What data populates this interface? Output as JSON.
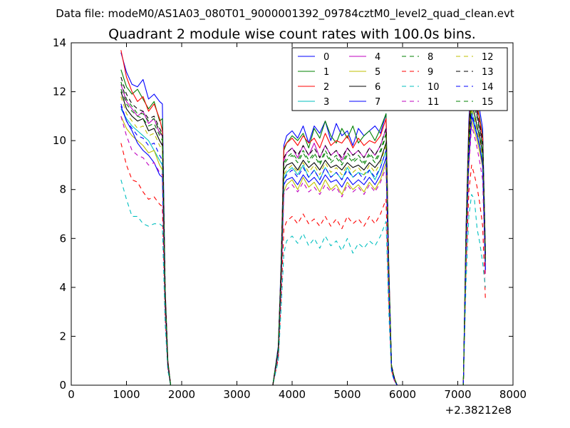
{
  "figure_title": "Data file: modeM0/AS1A03_080T01_9000001392_09784cztM0_level2_quad_clean.evt",
  "chart_data": {
    "type": "line",
    "title": "Quadrant 2 module wise count rates with 100.0s bins.",
    "xlabel": "",
    "ylabel": "",
    "x_offset_label": "+2.38212e8",
    "xlim": [
      0,
      8000
    ],
    "ylim": [
      0,
      14
    ],
    "x_ticks": [
      0,
      1000,
      2000,
      3000,
      4000,
      5000,
      6000,
      7000,
      8000
    ],
    "y_ticks": [
      0,
      2,
      4,
      6,
      8,
      10,
      12,
      14
    ],
    "grid": false,
    "legend": {
      "placement": "top-right",
      "columns": 4
    },
    "x": [
      900,
      1000,
      1100,
      1200,
      1300,
      1400,
      1500,
      1600,
      1650,
      1700,
      1750,
      1800,
      1850,
      3650,
      3750,
      3800,
      3850,
      3900,
      4000,
      4100,
      4200,
      4300,
      4400,
      4500,
      4600,
      4700,
      4800,
      4900,
      5000,
      5100,
      5200,
      5300,
      5400,
      5500,
      5600,
      5700,
      5750,
      5800,
      5850,
      5900,
      7050,
      7100,
      7150,
      7200,
      7250,
      7300,
      7350,
      7400,
      7450,
      7500
    ],
    "series": [
      {
        "name": "0",
        "color": "#0000ff",
        "dash": "solid",
        "values": [
          13.6,
          12.8,
          12.3,
          12.2,
          12.5,
          11.7,
          11.9,
          11.6,
          11.5,
          4.0,
          1.0,
          0,
          0,
          0,
          1.6,
          5.0,
          9.8,
          10.2,
          10.4,
          10.1,
          10.6,
          9.9,
          10.6,
          10.3,
          10.8,
          10.0,
          10.7,
          10.2,
          10.4,
          9.8,
          10.5,
          10.2,
          10.4,
          10.6,
          10.3,
          11.1,
          5.0,
          0.8,
          0.3,
          0,
          0,
          0,
          6.5,
          10.8,
          13.0,
          12.5,
          11.8,
          11.2,
          10.5,
          5.5
        ]
      },
      {
        "name": "1",
        "color": "#008000",
        "dash": "solid",
        "values": [
          12.9,
          12.2,
          11.9,
          12.1,
          11.7,
          11.3,
          11.6,
          10.8,
          10.9,
          3.8,
          0.9,
          0,
          0,
          0,
          1.5,
          4.7,
          9.6,
          9.9,
          10.2,
          10.0,
          10.3,
          9.7,
          10.5,
          10.1,
          10.8,
          10.2,
          9.9,
          10.5,
          10.1,
          10.6,
          9.9,
          10.2,
          10.4,
          10.0,
          10.5,
          11.1,
          4.9,
          0.8,
          0.3,
          0,
          0,
          0,
          6.3,
          10.5,
          12.7,
          12.2,
          11.5,
          10.9,
          10.2,
          5.4
        ]
      },
      {
        "name": "2",
        "color": "#ff0000",
        "dash": "solid",
        "values": [
          13.7,
          12.6,
          12.0,
          11.6,
          11.8,
          11.2,
          11.5,
          10.9,
          10.4,
          3.9,
          1.0,
          0,
          0,
          0,
          1.5,
          4.8,
          9.7,
          9.9,
          10.1,
          9.8,
          10.2,
          9.9,
          10.1,
          9.7,
          10.3,
          9.8,
          10.0,
          9.9,
          10.2,
          9.7,
          10.1,
          9.8,
          10.0,
          9.9,
          10.2,
          10.9,
          4.8,
          0.8,
          0.3,
          0,
          0,
          0,
          6.2,
          10.4,
          12.3,
          11.9,
          11.4,
          10.8,
          10.1,
          5.2
        ]
      },
      {
        "name": "3",
        "color": "#00bfbf",
        "dash": "solid",
        "values": [
          11.3,
          10.9,
          10.6,
          10.4,
          10.2,
          10.0,
          9.6,
          9.2,
          9.0,
          3.3,
          0.8,
          0,
          0,
          0,
          1.3,
          4.2,
          8.4,
          8.7,
          8.9,
          8.6,
          9.0,
          8.5,
          8.8,
          8.4,
          8.9,
          8.5,
          8.7,
          8.4,
          8.9,
          8.5,
          8.7,
          8.6,
          8.8,
          8.4,
          8.9,
          9.6,
          4.3,
          0.7,
          0.2,
          0,
          0,
          0,
          5.6,
          9.4,
          11.2,
          10.8,
          10.3,
          9.8,
          9.2,
          4.8
        ]
      },
      {
        "name": "4",
        "color": "#bf00bf",
        "dash": "solid",
        "values": [
          12.3,
          11.6,
          11.3,
          11.0,
          11.2,
          10.7,
          10.9,
          10.3,
          10.2,
          3.7,
          0.9,
          0,
          0,
          0,
          1.5,
          4.6,
          9.2,
          9.5,
          9.7,
          9.3,
          9.8,
          9.4,
          9.9,
          9.3,
          9.8,
          9.4,
          9.6,
          9.2,
          9.7,
          9.4,
          9.6,
          9.3,
          9.7,
          9.4,
          9.8,
          10.5,
          4.7,
          0.8,
          0.3,
          0,
          0,
          0,
          6.0,
          10.0,
          12.0,
          11.6,
          11.1,
          10.5,
          9.8,
          5.1
        ]
      },
      {
        "name": "5",
        "color": "#bfbf00",
        "dash": "solid",
        "values": [
          11.0,
          10.5,
          10.2,
          10.0,
          9.8,
          9.5,
          9.6,
          9.0,
          8.8,
          3.3,
          0.8,
          0,
          0,
          0,
          1.3,
          4.1,
          7.9,
          8.2,
          8.4,
          8.0,
          8.5,
          8.1,
          8.3,
          7.9,
          8.4,
          8.0,
          8.2,
          7.8,
          8.3,
          8.0,
          8.2,
          7.9,
          8.3,
          8.0,
          8.4,
          9.1,
          4.1,
          0.7,
          0.2,
          0,
          0,
          0,
          5.3,
          9.0,
          10.8,
          10.4,
          10.0,
          9.5,
          8.9,
          4.6
        ]
      },
      {
        "name": "6",
        "color": "#000000",
        "dash": "solid",
        "values": [
          12.0,
          11.3,
          11.0,
          10.8,
          10.9,
          10.4,
          10.5,
          10.0,
          9.8,
          3.6,
          0.9,
          0,
          0,
          0,
          1.4,
          4.5,
          8.8,
          9.0,
          9.1,
          8.8,
          9.2,
          8.9,
          9.1,
          8.8,
          9.2,
          8.9,
          9.0,
          8.8,
          9.1,
          8.9,
          9.0,
          8.8,
          9.1,
          8.9,
          9.2,
          9.9,
          4.5,
          0.8,
          0.3,
          0,
          0,
          0,
          5.8,
          9.8,
          11.5,
          11.1,
          10.6,
          10.1,
          9.5,
          4.9
        ]
      },
      {
        "name": "7",
        "color": "#0000ff",
        "dash": "solid",
        "values": [
          11.4,
          10.8,
          10.4,
          9.9,
          9.6,
          9.4,
          9.1,
          8.6,
          8.5,
          3.2,
          0.8,
          0,
          0,
          0,
          1.3,
          4.1,
          8.2,
          8.4,
          8.5,
          8.2,
          8.6,
          8.3,
          8.5,
          8.2,
          8.6,
          8.3,
          8.4,
          8.1,
          8.5,
          8.2,
          8.4,
          8.2,
          8.5,
          8.2,
          8.6,
          9.3,
          4.2,
          0.7,
          0.2,
          0,
          0,
          0,
          5.5,
          9.2,
          11.0,
          10.6,
          10.2,
          9.7,
          9.0,
          4.7
        ]
      },
      {
        "name": "8",
        "color": "#008000",
        "dash": "dashed",
        "values": [
          12.1,
          11.5,
          11.2,
          11.0,
          10.9,
          10.6,
          10.7,
          10.2,
          10.0,
          3.7,
          0.9,
          0,
          0,
          0,
          1.5,
          4.6,
          9.0,
          9.2,
          9.4,
          9.1,
          9.5,
          9.1,
          9.4,
          9.0,
          9.5,
          9.1,
          9.3,
          9.0,
          9.4,
          9.1,
          9.3,
          9.0,
          9.4,
          9.1,
          9.5,
          10.2,
          4.6,
          0.8,
          0.3,
          0,
          0,
          0,
          5.9,
          9.9,
          11.8,
          11.4,
          10.9,
          10.3,
          9.7,
          5.0
        ]
      },
      {
        "name": "9",
        "color": "#ff0000",
        "dash": "dashed",
        "values": [
          9.9,
          9.0,
          8.4,
          8.3,
          7.9,
          7.6,
          7.7,
          7.4,
          7.3,
          2.8,
          0.7,
          0,
          0,
          0,
          1.1,
          3.5,
          6.4,
          6.7,
          6.9,
          6.6,
          7.0,
          6.6,
          6.8,
          6.5,
          6.9,
          6.5,
          6.8,
          6.4,
          6.9,
          6.6,
          6.8,
          6.5,
          6.9,
          6.6,
          7.0,
          7.6,
          3.5,
          0.6,
          0.2,
          0,
          0,
          0,
          4.8,
          7.9,
          9.0,
          8.6,
          8.1,
          7.4,
          6.5,
          3.5
        ]
      },
      {
        "name": "10",
        "color": "#00bfbf",
        "dash": "dashed",
        "values": [
          8.4,
          7.6,
          6.9,
          6.9,
          6.6,
          6.5,
          6.6,
          6.6,
          6.5,
          2.5,
          0.6,
          0,
          0,
          0,
          1.0,
          3.1,
          5.4,
          5.9,
          6.1,
          5.8,
          6.2,
          5.7,
          6.0,
          5.6,
          6.1,
          5.7,
          5.9,
          5.5,
          6.0,
          5.4,
          5.8,
          5.6,
          5.9,
          5.7,
          6.1,
          6.7,
          3.0,
          0.5,
          0.2,
          0,
          0,
          0,
          4.2,
          6.9,
          7.8,
          7.6,
          6.4,
          5.8,
          5.0,
          4.0
        ]
      },
      {
        "name": "11",
        "color": "#bf00bf",
        "dash": "dashed",
        "values": [
          11.0,
          10.2,
          9.6,
          9.4,
          9.3,
          9.0,
          9.1,
          8.7,
          8.6,
          3.2,
          0.8,
          0,
          0,
          0,
          1.3,
          4.0,
          7.8,
          8.0,
          8.2,
          7.9,
          8.3,
          7.9,
          8.1,
          7.8,
          8.2,
          7.9,
          8.1,
          7.7,
          8.2,
          7.9,
          8.1,
          7.8,
          8.2,
          7.9,
          8.3,
          8.9,
          4.0,
          0.7,
          0.2,
          0,
          0,
          0,
          5.3,
          8.9,
          10.6,
          10.2,
          9.7,
          9.1,
          8.4,
          4.4
        ]
      },
      {
        "name": "12",
        "color": "#bfbf00",
        "dash": "dashed",
        "values": [
          11.8,
          11.1,
          10.8,
          10.5,
          10.6,
          10.2,
          10.3,
          9.8,
          9.6,
          3.5,
          0.9,
          0,
          0,
          0,
          1.4,
          4.4,
          8.6,
          8.8,
          9.0,
          8.7,
          9.1,
          8.7,
          9.0,
          8.6,
          9.1,
          8.7,
          8.9,
          8.6,
          9.0,
          8.7,
          8.9,
          8.6,
          9.0,
          8.7,
          9.1,
          9.8,
          4.4,
          0.8,
          0.3,
          0,
          0,
          0,
          5.7,
          9.6,
          11.3,
          10.9,
          10.4,
          9.9,
          9.3,
          4.8
        ]
      },
      {
        "name": "13",
        "color": "#000000",
        "dash": "dashed",
        "values": [
          12.6,
          11.9,
          11.5,
          11.3,
          11.2,
          10.9,
          11.0,
          10.5,
          10.3,
          3.8,
          0.9,
          0,
          0,
          0,
          1.5,
          4.7,
          9.3,
          9.5,
          9.7,
          9.4,
          9.8,
          9.4,
          9.7,
          9.3,
          9.8,
          9.4,
          9.6,
          9.3,
          9.7,
          9.4,
          9.6,
          9.3,
          9.7,
          9.4,
          9.8,
          10.5,
          4.7,
          0.8,
          0.3,
          0,
          0,
          0,
          6.1,
          10.2,
          12.2,
          11.8,
          11.2,
          10.6,
          10.0,
          5.2
        ]
      },
      {
        "name": "14",
        "color": "#0000ff",
        "dash": "dashed",
        "values": [
          11.5,
          10.8,
          10.5,
          10.2,
          10.1,
          9.8,
          9.9,
          9.4,
          9.2,
          3.4,
          0.8,
          0,
          0,
          0,
          1.4,
          4.3,
          8.4,
          8.6,
          8.8,
          8.5,
          8.9,
          8.5,
          8.8,
          8.4,
          8.9,
          8.5,
          8.7,
          8.4,
          8.8,
          8.5,
          8.7,
          8.4,
          8.8,
          8.5,
          8.9,
          9.6,
          4.3,
          0.7,
          0.2,
          0,
          0,
          0,
          5.6,
          9.4,
          11.1,
          10.7,
          10.2,
          9.7,
          9.1,
          4.7
        ]
      },
      {
        "name": "15",
        "color": "#008000",
        "dash": "dashed",
        "values": [
          12.4,
          11.7,
          11.4,
          11.1,
          11.1,
          10.8,
          10.9,
          10.4,
          10.2,
          3.7,
          0.9,
          0,
          0,
          0,
          1.5,
          4.6,
          9.1,
          9.3,
          9.5,
          9.2,
          9.6,
          9.2,
          9.5,
          9.1,
          9.6,
          9.2,
          9.4,
          9.1,
          9.5,
          9.2,
          9.4,
          9.1,
          9.5,
          9.2,
          9.6,
          10.3,
          4.6,
          0.8,
          0.3,
          0,
          0,
          0,
          6.0,
          10.0,
          11.9,
          11.5,
          11.0,
          10.4,
          9.8,
          5.1
        ]
      }
    ]
  }
}
